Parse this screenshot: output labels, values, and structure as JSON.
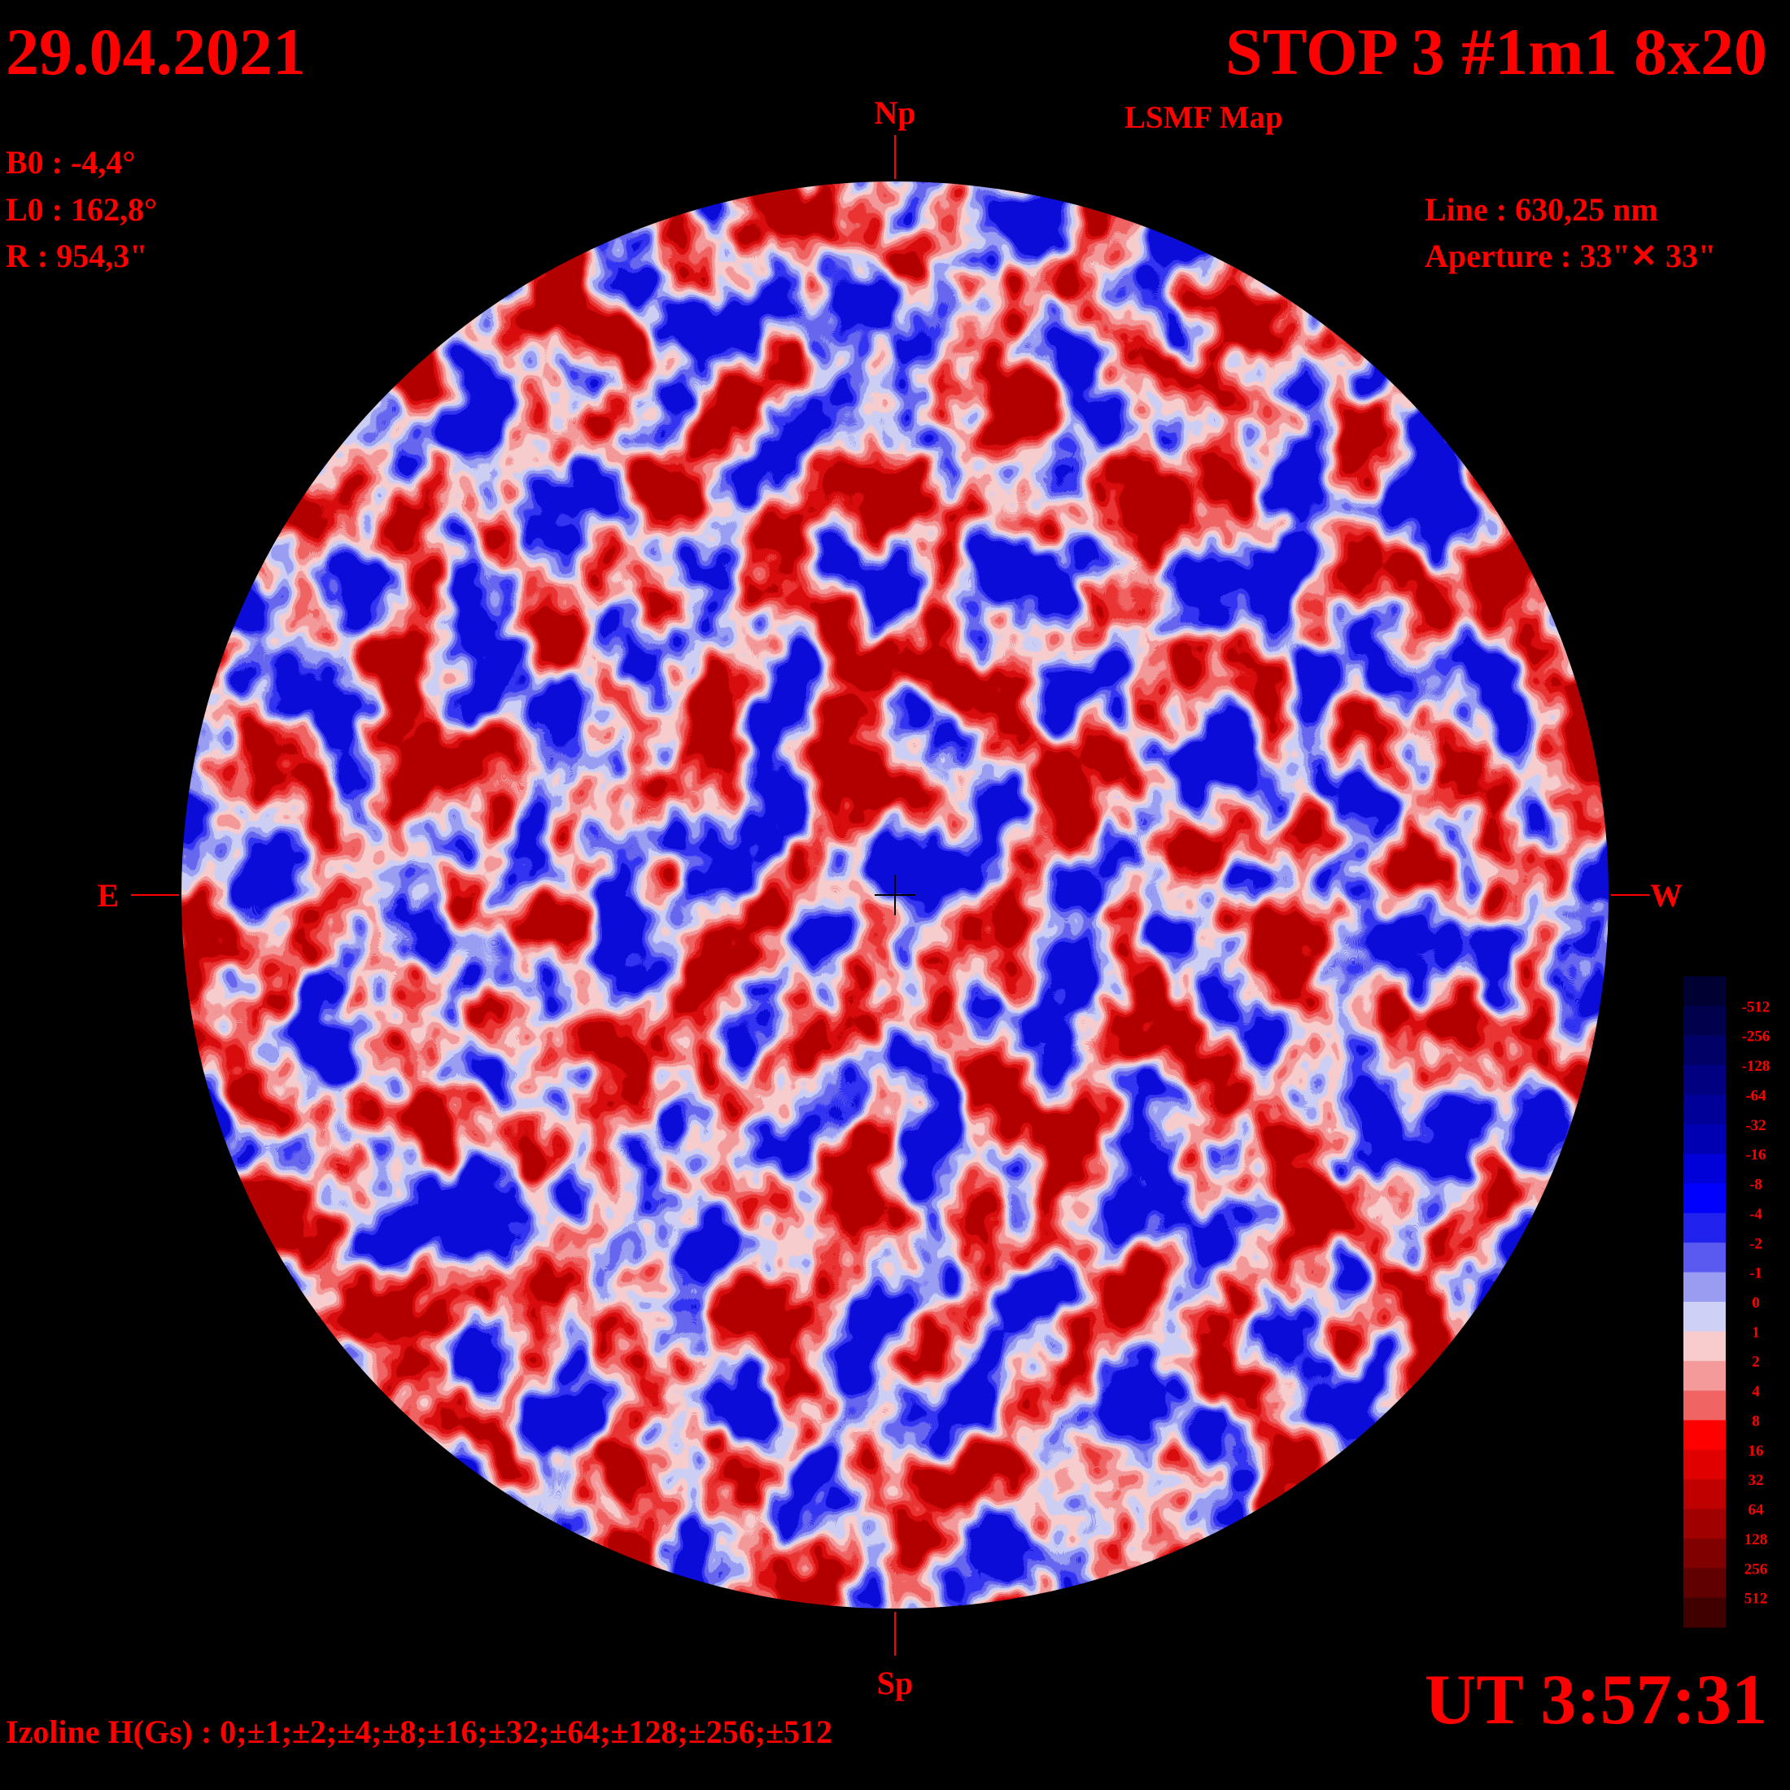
{
  "header": {
    "date": "29.04.2021",
    "title": "STOP 3 #1m1 8x20",
    "subtitle": "LSMF  Map"
  },
  "params": [
    "B0 : -4,4°",
    "L0 : 162,8°",
    "R  : 954,3\""
  ],
  "instrument": [
    "Line :  630,25 nm",
    "Aperture : 33\"✕ 33\""
  ],
  "compass": {
    "north": "Np",
    "south": "Sp",
    "east": "E",
    "west": "W"
  },
  "time": "UT 3:57:31",
  "izoline": "Izoline H(Gs) : 0;±1;±2;±4;±8;±16;±32;±64;±128;±256;±512",
  "colorbar": {
    "labels": [
      "-512",
      "-256",
      "-128",
      "-64",
      "-32",
      "-16",
      "-8",
      "-4",
      "-2",
      "-1",
      "0",
      "1",
      "2",
      "4",
      "8",
      "16",
      "32",
      "64",
      "128",
      "256",
      "512"
    ],
    "colors": [
      "#000033",
      "#00004d",
      "#000066",
      "#000080",
      "#000099",
      "#0000b3",
      "#0000d9",
      "#0000ff",
      "#2222ee",
      "#5a5af0",
      "#9a9cf2",
      "#cfd0f5",
      "#f8cccc",
      "#f59a9a",
      "#f06464",
      "#ff0000",
      "#e00000",
      "#c00000",
      "#a00000",
      "#800000",
      "#600000",
      "#400000"
    ]
  }
}
